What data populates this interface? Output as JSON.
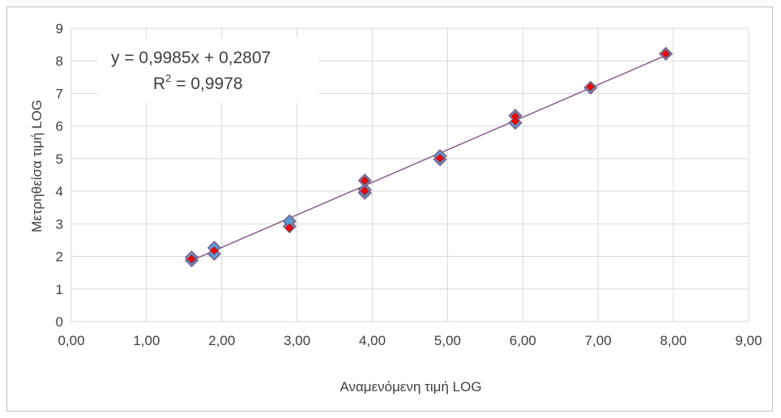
{
  "chart_data": {
    "type": "scatter",
    "title": "",
    "xlabel": "Αναμενόμενη τιμή LOG",
    "ylabel": "Μετρηθείσα τιμή LOG",
    "xlim": [
      0,
      9
    ],
    "ylim": [
      0,
      9
    ],
    "x_ticks": [
      0,
      1,
      2,
      3,
      4,
      5,
      6,
      7,
      8,
      9
    ],
    "x_tick_labels": [
      "0,00",
      "1,00",
      "2,00",
      "3,00",
      "4,00",
      "5,00",
      "6,00",
      "7,00",
      "8,00",
      "9,00"
    ],
    "y_ticks": [
      0,
      1,
      2,
      3,
      4,
      5,
      6,
      7,
      8,
      9
    ],
    "y_tick_labels": [
      "0",
      "1",
      "2",
      "3",
      "4",
      "5",
      "6",
      "7",
      "8",
      "9"
    ],
    "grid": "horizontal-and-vertical",
    "legend": "none",
    "series": [
      {
        "marker": "diamond",
        "fill_color": "#5b9bd5",
        "edge_color": "#7f6084",
        "x": [
          1.6,
          1.6,
          1.9,
          1.9,
          2.9,
          2.9,
          3.9,
          3.9,
          3.9,
          4.9,
          4.9,
          5.9,
          5.9,
          6.9,
          7.9
        ],
        "y": [
          1.88,
          1.97,
          2.08,
          2.27,
          2.92,
          3.08,
          3.95,
          4.05,
          4.33,
          4.98,
          5.08,
          6.1,
          6.32,
          7.18,
          8.22
        ]
      },
      {
        "marker": "diamond-small",
        "fill_color": "#ff0000",
        "edge_color": "#c00000",
        "x": [
          1.6,
          1.9,
          2.9,
          3.9,
          3.9,
          4.9,
          5.9,
          5.9,
          6.9,
          7.9
        ],
        "y": [
          1.93,
          2.18,
          2.88,
          4.02,
          4.33,
          5.02,
          6.15,
          6.3,
          7.2,
          8.22
        ]
      }
    ],
    "trendline": {
      "slope": 0.9985,
      "intercept": 0.2807,
      "x_range": [
        1.6,
        7.9
      ],
      "color": "#8b5a8b",
      "equation_text": "y = 0,9985x + 0,2807",
      "r2_prefix": "R",
      "r2_sup": "2",
      "r2_value_text": " = 0,9978"
    }
  }
}
